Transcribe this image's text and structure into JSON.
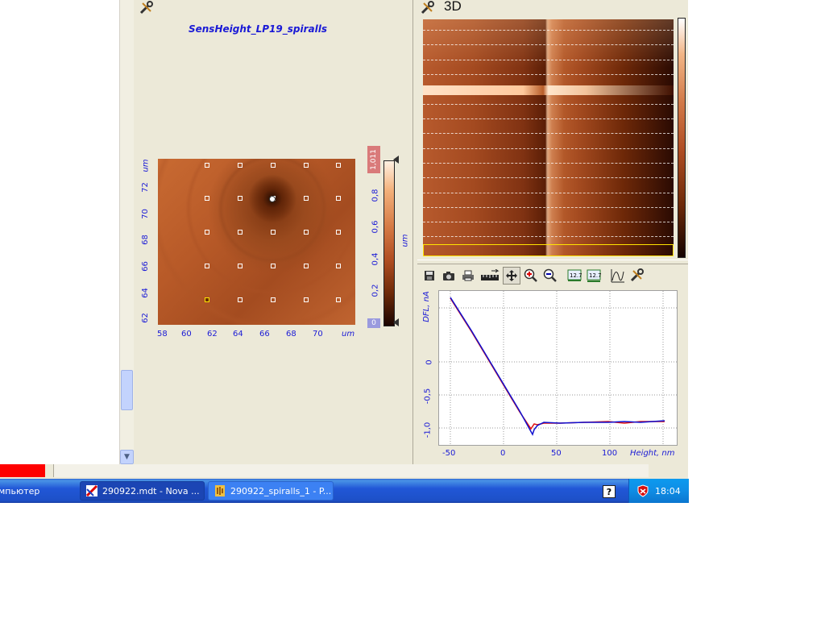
{
  "map_panel": {
    "title": "SensHeight_LP19_spiralls",
    "y_unit": "um",
    "x_unit": "um",
    "y_ticks": [
      "72",
      "70",
      "68",
      "66",
      "64",
      "62"
    ],
    "x_ticks": [
      "58",
      "60",
      "62",
      "64",
      "66",
      "68",
      "70"
    ],
    "colorbar_max": "1,011",
    "colorbar_min": "0",
    "colorbar_ticks": [
      "0,8",
      "0,6",
      "0,4",
      "0,2"
    ],
    "colorbar_unit": "um"
  },
  "view3d": {
    "label": "3D"
  },
  "graph": {
    "y_label": "DFL, nA",
    "x_label": "Height, nm",
    "y_ticks": [
      "0",
      "-0,5",
      "-1,0"
    ],
    "x_ticks": [
      "-50",
      "0",
      "50",
      "100"
    ]
  },
  "taskbar": {
    "start_fragment": "мпьютер",
    "task1": "290922.mdt  -  Nova ...",
    "task2": "290922_spiralls_1 - P...",
    "clock": "18:04"
  },
  "colors": {
    "axis_text": "#1a1ad6",
    "curve_red": "#e01010",
    "curve_blue": "#1010d0"
  },
  "icons": [
    "settings-wrench-icon",
    "save-icon",
    "camera-icon",
    "print-icon",
    "ruler-icon",
    "move-icon",
    "zoom-in-icon",
    "zoom-out-icon",
    "scale-icon",
    "fit-icon",
    "curve-icon",
    "help-icon",
    "antivirus-icon"
  ]
}
